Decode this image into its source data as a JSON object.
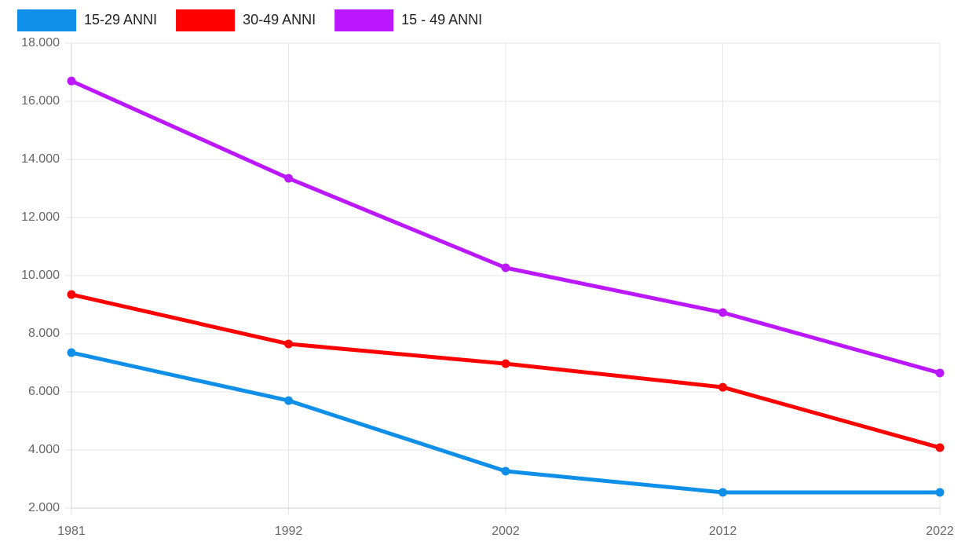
{
  "chart_data": {
    "type": "line",
    "categories": [
      "1981",
      "1992",
      "2002",
      "2012",
      "2022"
    ],
    "series": [
      {
        "name": "15-29 ANNI",
        "color": "#0f8fe8",
        "values": [
          7350,
          5700,
          3270,
          2540,
          2540
        ]
      },
      {
        "name": "30-49 ANNI",
        "color": "#ff0000",
        "values": [
          9350,
          7650,
          6970,
          6160,
          4080
        ]
      },
      {
        "name": "15 - 49 ANNI",
        "color": "#bb18ff",
        "values": [
          16700,
          13350,
          10270,
          8730,
          6650
        ]
      }
    ],
    "ylim": [
      2000,
      18000
    ],
    "yticks": [
      {
        "value": 2000,
        "label": "2.000"
      },
      {
        "value": 4000,
        "label": "4.000"
      },
      {
        "value": 6000,
        "label": "6.000"
      },
      {
        "value": 8000,
        "label": "8.000"
      },
      {
        "value": 10000,
        "label": "10.000"
      },
      {
        "value": 12000,
        "label": "12.000"
      },
      {
        "value": 14000,
        "label": "14.000"
      },
      {
        "value": 16000,
        "label": "16.000"
      },
      {
        "value": 18000,
        "label": "18.000"
      }
    ],
    "grid": true,
    "legend": "top-left"
  }
}
